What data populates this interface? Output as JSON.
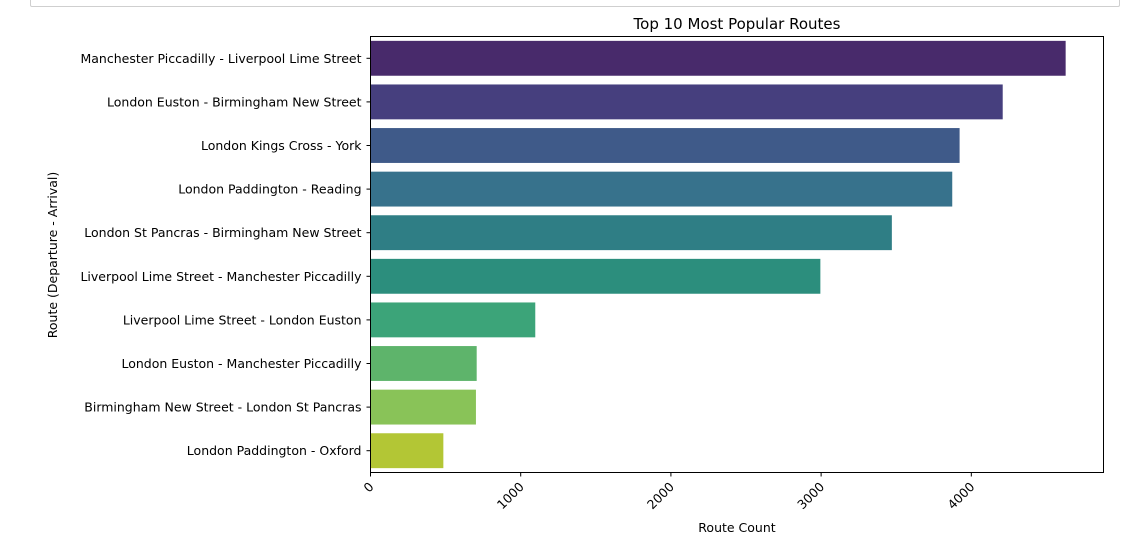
{
  "chart_data": {
    "type": "bar",
    "orientation": "horizontal",
    "title": "Top 10 Most Popular Routes",
    "xlabel": "Route Count",
    "ylabel": "Route (Departure - Arrival)",
    "xlim": [
      0,
      4880
    ],
    "xticks": [
      0,
      1000,
      2000,
      3000,
      4000
    ],
    "xtick_labels": [
      "0",
      "1000",
      "2000",
      "3000",
      "4000"
    ],
    "categories": [
      "Manchester Piccadilly - Liverpool Lime Street",
      "London Euston - Birmingham New Street",
      "London Kings Cross - York",
      "London Paddington - Reading",
      "London St Pancras - Birmingham New Street",
      "Liverpool Lime Street - Manchester Piccadilly",
      "Liverpool Lime Street - London Euston",
      "London Euston - Manchester Piccadilly",
      "Birmingham New Street - London St Pancras",
      "London Paddington - Oxford"
    ],
    "values": [
      4628,
      4209,
      3922,
      3873,
      3471,
      2995,
      1097,
      707,
      702,
      485
    ],
    "colors": [
      "#482a6b",
      "#463f7e",
      "#3f5a89",
      "#37728c",
      "#2f7e85",
      "#2c8e7d",
      "#3ca479",
      "#5eb46b",
      "#89c358",
      "#b3c635"
    ],
    "grid": false,
    "legend": "none"
  }
}
